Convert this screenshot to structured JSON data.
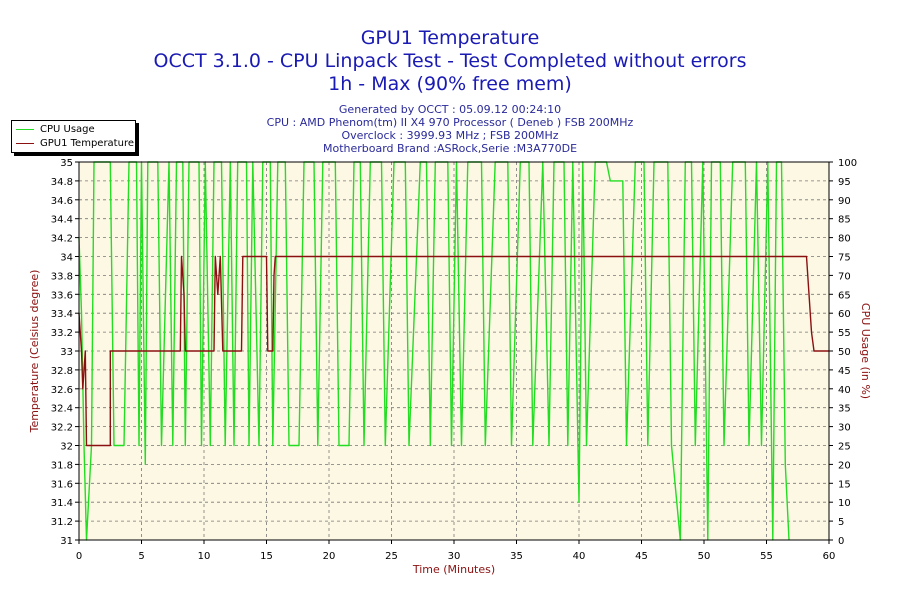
{
  "header": {
    "title": "GPU1 Temperature",
    "subtitle": "OCCT 3.1.0 - CPU Linpack Test - Test Completed without errors",
    "subtitle2": "1h - Max (90% free mem)"
  },
  "info": {
    "generated": "Generated by OCCT : 05.09.12 00:24:10",
    "cpu": "CPU : AMD Phenom(tm) II X4 970 Processor ( Deneb ) FSB 200MHz",
    "overclock": "Overclock : 3999.93 MHz ; FSB 200MHz",
    "motherboard": "Motherboard Brand :ASRock,Serie :M3A770DE"
  },
  "colors": {
    "background": "#fdf8e4",
    "cpu_usage": "#22dd22",
    "gpu_temp": "#8b1010",
    "axis_text": "#000000",
    "axis_label": "#8b1010"
  },
  "chart_data": {
    "type": "line",
    "xlabel": "Time (Minutes)",
    "ylabel": "Temperature (Celsius degree)",
    "y2label": "CPU Usage (in %)",
    "xlim": [
      0,
      60
    ],
    "ylim": [
      31,
      35
    ],
    "y2lim": [
      0,
      100
    ],
    "grid": true,
    "legend_position": "top-left",
    "xticks": [
      0,
      5,
      10,
      15,
      20,
      25,
      30,
      35,
      40,
      45,
      50,
      55,
      60
    ],
    "yticks": [
      31,
      31.2,
      31.4,
      31.6,
      31.8,
      32,
      32.2,
      32.4,
      32.6,
      32.8,
      33,
      33.2,
      33.4,
      33.6,
      33.8,
      34,
      34.2,
      34.4,
      34.6,
      34.8,
      35
    ],
    "y2ticks": [
      0,
      5,
      10,
      15,
      20,
      25,
      30,
      35,
      40,
      45,
      50,
      55,
      60,
      65,
      70,
      75,
      80,
      85,
      90,
      95,
      100
    ],
    "series": [
      {
        "name": "CPU Usage",
        "axis": "right",
        "points": [
          [
            0.0,
            80
          ],
          [
            0.2,
            60
          ],
          [
            0.4,
            25
          ],
          [
            0.6,
            0
          ],
          [
            1.0,
            25
          ],
          [
            1.2,
            100
          ],
          [
            2.5,
            100
          ],
          [
            2.8,
            25
          ],
          [
            3.6,
            25
          ],
          [
            4.0,
            100
          ],
          [
            4.6,
            100
          ],
          [
            4.8,
            25
          ],
          [
            5.0,
            100
          ],
          [
            5.3,
            20
          ],
          [
            5.5,
            100
          ],
          [
            6.3,
            100
          ],
          [
            6.6,
            25
          ],
          [
            7.2,
            100
          ],
          [
            7.5,
            25
          ],
          [
            7.8,
            100
          ],
          [
            8.3,
            100
          ],
          [
            8.5,
            25
          ],
          [
            8.8,
            100
          ],
          [
            9.6,
            100
          ],
          [
            9.8,
            25
          ],
          [
            10.1,
            100
          ],
          [
            10.5,
            25
          ],
          [
            10.8,
            100
          ],
          [
            11.4,
            100
          ],
          [
            11.7,
            25
          ],
          [
            12.1,
            100
          ],
          [
            12.4,
            25
          ],
          [
            12.7,
            100
          ],
          [
            13.4,
            100
          ],
          [
            13.6,
            25
          ],
          [
            13.9,
            100
          ],
          [
            14.4,
            25
          ],
          [
            14.7,
            100
          ],
          [
            15.3,
            100
          ],
          [
            15.5,
            25
          ],
          [
            15.9,
            100
          ],
          [
            16.5,
            100
          ],
          [
            16.8,
            25
          ],
          [
            17.6,
            25
          ],
          [
            18.0,
            100
          ],
          [
            18.8,
            100
          ],
          [
            19.1,
            25
          ],
          [
            19.5,
            100
          ],
          [
            20.5,
            100
          ],
          [
            20.8,
            25
          ],
          [
            21.6,
            25
          ],
          [
            22.0,
            100
          ],
          [
            22.5,
            100
          ],
          [
            22.8,
            25
          ],
          [
            23.3,
            100
          ],
          [
            24.2,
            100
          ],
          [
            24.5,
            25
          ],
          [
            25.2,
            100
          ],
          [
            26.1,
            100
          ],
          [
            26.4,
            25
          ],
          [
            27.3,
            100
          ],
          [
            27.8,
            100
          ],
          [
            28.1,
            25
          ],
          [
            28.5,
            100
          ],
          [
            29.5,
            100
          ],
          [
            29.8,
            25
          ],
          [
            30.2,
            100
          ],
          [
            30.6,
            25
          ],
          [
            31.1,
            100
          ],
          [
            32.2,
            100
          ],
          [
            32.5,
            25
          ],
          [
            33.3,
            100
          ],
          [
            34.3,
            100
          ],
          [
            34.6,
            25
          ],
          [
            35.3,
            100
          ],
          [
            36.0,
            100
          ],
          [
            36.3,
            25
          ],
          [
            37.1,
            100
          ],
          [
            37.6,
            25
          ],
          [
            38.0,
            100
          ],
          [
            38.8,
            100
          ],
          [
            39.1,
            25
          ],
          [
            39.5,
            100
          ],
          [
            40.0,
            10
          ],
          [
            40.3,
            100
          ],
          [
            40.6,
            25
          ],
          [
            41.3,
            100
          ],
          [
            42.2,
            100
          ],
          [
            42.5,
            95
          ],
          [
            43.5,
            95
          ],
          [
            43.8,
            25
          ],
          [
            44.5,
            100
          ],
          [
            45.2,
            100
          ],
          [
            45.5,
            25
          ],
          [
            46.0,
            100
          ],
          [
            47.1,
            100
          ],
          [
            47.4,
            25
          ],
          [
            48.1,
            0
          ],
          [
            48.5,
            100
          ],
          [
            49.0,
            100
          ],
          [
            49.3,
            25
          ],
          [
            49.9,
            100
          ],
          [
            50.3,
            0
          ],
          [
            50.6,
            100
          ],
          [
            51.3,
            100
          ],
          [
            51.6,
            25
          ],
          [
            52.3,
            100
          ],
          [
            53.3,
            100
          ],
          [
            53.6,
            25
          ],
          [
            54.2,
            100
          ],
          [
            54.6,
            25
          ],
          [
            55.1,
            100
          ],
          [
            55.5,
            0
          ],
          [
            55.8,
            100
          ],
          [
            56.2,
            100
          ],
          [
            56.5,
            20
          ],
          [
            56.8,
            0
          ]
        ]
      },
      {
        "name": "GPU1 Temperature",
        "axis": "left",
        "points": [
          [
            0.0,
            33.4
          ],
          [
            0.2,
            33.0
          ],
          [
            0.3,
            32.6
          ],
          [
            0.5,
            33.0
          ],
          [
            0.6,
            32.0
          ],
          [
            2.5,
            32.0
          ],
          [
            2.5,
            33.0
          ],
          [
            8.1,
            33.0
          ],
          [
            8.2,
            34.0
          ],
          [
            8.4,
            33.6
          ],
          [
            8.5,
            33.0
          ],
          [
            10.8,
            33.0
          ],
          [
            10.9,
            34.0
          ],
          [
            11.1,
            33.6
          ],
          [
            11.3,
            34.0
          ],
          [
            11.5,
            33.0
          ],
          [
            13.0,
            33.0
          ],
          [
            13.1,
            34.0
          ],
          [
            15.0,
            34.0
          ],
          [
            15.1,
            33.0
          ],
          [
            15.5,
            33.0
          ],
          [
            15.6,
            33.8
          ],
          [
            15.7,
            34.0
          ],
          [
            58.2,
            34.0
          ],
          [
            58.4,
            33.6
          ],
          [
            58.6,
            33.2
          ],
          [
            58.8,
            33.0
          ],
          [
            60.0,
            33.0
          ]
        ]
      }
    ]
  }
}
